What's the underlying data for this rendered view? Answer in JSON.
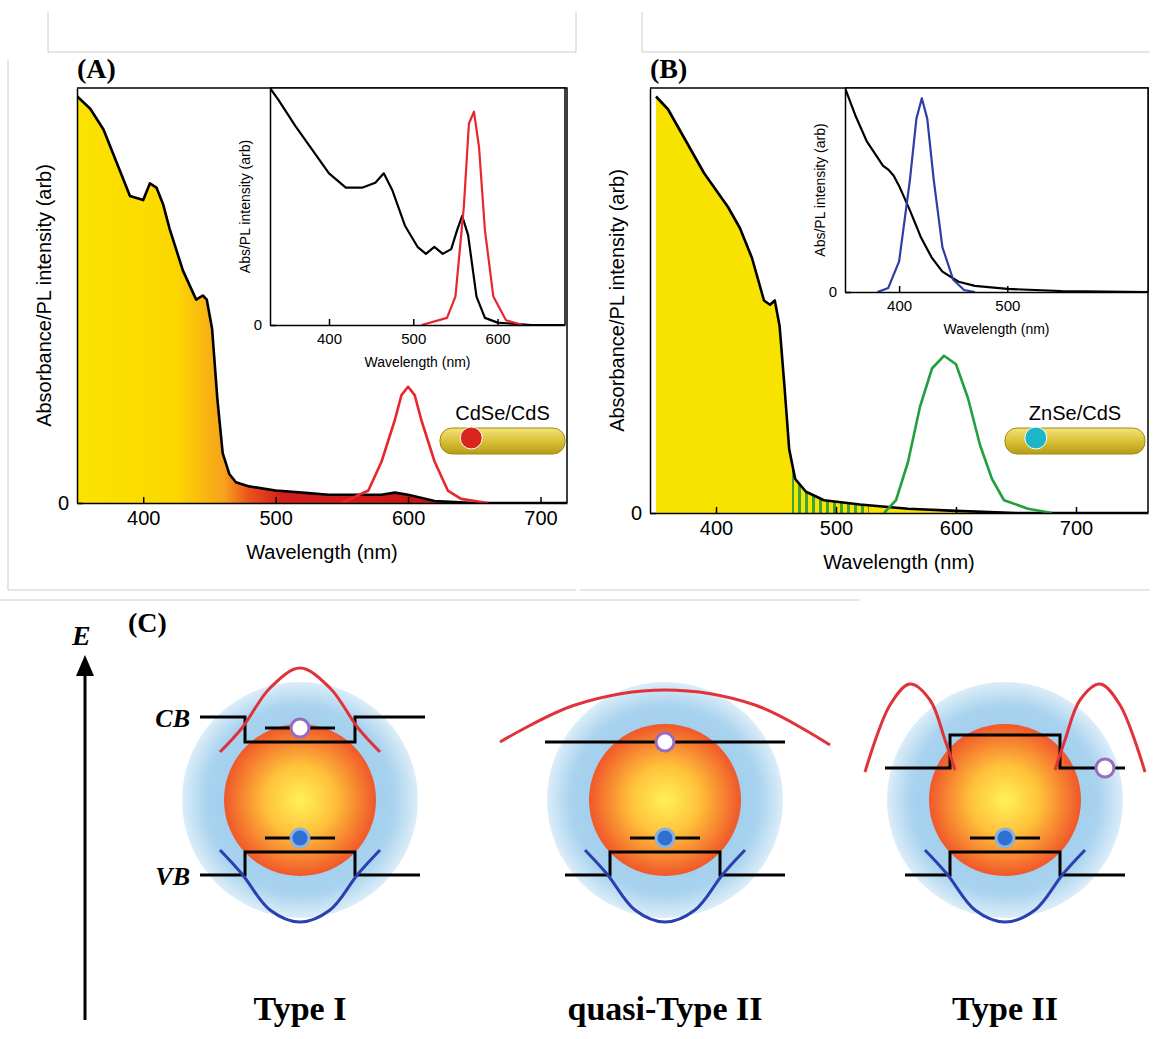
{
  "chart_data": [
    {
      "type": "line",
      "panel_label": "(A)",
      "x_label": "Wavelength (nm)",
      "y_label": "Absorbance/PL intensity (arb)",
      "annotations": [
        "CdSe/CdS"
      ],
      "xlim": [
        350,
        720
      ],
      "xticks": [
        400,
        500,
        600,
        700
      ],
      "ylim": [
        0,
        1
      ],
      "yticks": [
        0
      ],
      "series": [
        {
          "type": "area",
          "color": "#000000",
          "x": [
            350,
            360,
            370,
            380,
            390,
            400,
            405,
            410,
            415,
            420,
            430,
            440,
            445,
            448,
            452,
            456,
            460,
            465,
            470,
            480,
            500,
            520,
            540,
            560,
            580,
            590,
            600,
            620,
            650,
            720
          ],
          "values": [
            0.98,
            0.95,
            0.9,
            0.82,
            0.74,
            0.73,
            0.77,
            0.76,
            0.72,
            0.66,
            0.56,
            0.49,
            0.5,
            0.49,
            0.42,
            0.25,
            0.12,
            0.07,
            0.05,
            0.04,
            0.03,
            0.025,
            0.02,
            0.02,
            0.02,
            0.025,
            0.02,
            0.005,
            0,
            0
          ]
        },
        {
          "type": "line",
          "color": "#e8262d",
          "x": [
            550,
            570,
            580,
            590,
            595,
            600,
            605,
            610,
            620,
            630,
            640,
            660
          ],
          "values": [
            0,
            0.03,
            0.1,
            0.2,
            0.26,
            0.28,
            0.26,
            0.2,
            0.1,
            0.03,
            0.01,
            0
          ]
        }
      ]
    },
    {
      "type": "line",
      "x_label": "Wavelength (nm)",
      "y_label": "Abs/PL intensity (arb)",
      "xlim": [
        330,
        680
      ],
      "xticks": [
        400,
        500,
        600
      ],
      "ylim": [
        0,
        1
      ],
      "yticks": [
        0
      ],
      "series": [
        {
          "type": "line",
          "color": "#000000",
          "x": [
            330,
            340,
            360,
            380,
            400,
            420,
            440,
            455,
            465,
            475,
            490,
            505,
            515,
            525,
            535,
            545,
            552,
            558,
            565,
            575,
            585,
            600,
            640,
            680
          ],
          "values": [
            1.0,
            0.95,
            0.84,
            0.74,
            0.64,
            0.58,
            0.58,
            0.6,
            0.64,
            0.57,
            0.42,
            0.33,
            0.3,
            0.33,
            0.3,
            0.32,
            0.4,
            0.46,
            0.38,
            0.12,
            0.03,
            0.01,
            0,
            0
          ]
        },
        {
          "type": "line",
          "color": "#e8262d",
          "x": [
            510,
            540,
            550,
            560,
            566,
            572,
            578,
            585,
            595,
            610,
            630
          ],
          "values": [
            0,
            0.03,
            0.12,
            0.5,
            0.85,
            0.9,
            0.75,
            0.4,
            0.12,
            0.02,
            0
          ]
        }
      ]
    },
    {
      "type": "line",
      "panel_label": "(B)",
      "x_label": "Wavelength (nm)",
      "y_label": "Absorbance/PL intensity (arb)",
      "annotations": [
        "ZnSe/CdS"
      ],
      "xlim": [
        345,
        760
      ],
      "xticks": [
        400,
        500,
        600,
        700
      ],
      "ylim": [
        0,
        1
      ],
      "yticks": [
        0
      ],
      "series": [
        {
          "type": "area",
          "color": "#000000",
          "x": [
            350,
            360,
            370,
            380,
            390,
            400,
            410,
            420,
            430,
            440,
            445,
            449,
            453,
            457,
            461,
            466,
            475,
            490,
            520,
            560,
            600,
            650,
            760
          ],
          "values": [
            0.98,
            0.95,
            0.9,
            0.85,
            0.8,
            0.76,
            0.72,
            0.67,
            0.6,
            0.5,
            0.49,
            0.5,
            0.44,
            0.3,
            0.15,
            0.08,
            0.05,
            0.03,
            0.02,
            0.01,
            0.005,
            0,
            0
          ]
        },
        {
          "type": "line",
          "color": "#22a040",
          "x": [
            540,
            550,
            560,
            570,
            580,
            590,
            600,
            610,
            620,
            630,
            640,
            660,
            680
          ],
          "values": [
            0,
            0.03,
            0.12,
            0.25,
            0.34,
            0.37,
            0.35,
            0.27,
            0.16,
            0.08,
            0.03,
            0.01,
            0
          ]
        }
      ]
    },
    {
      "type": "line",
      "x_label": "Wavelength (nm)",
      "y_label": "Abs/PL intensity (arb)",
      "xlim": [
        350,
        630
      ],
      "xticks": [
        400,
        500
      ],
      "ylim": [
        0,
        1
      ],
      "yticks": [
        0
      ],
      "series": [
        {
          "type": "line",
          "color": "#000000",
          "x": [
            350,
            360,
            370,
            380,
            385,
            390,
            395,
            400,
            410,
            420,
            430,
            440,
            455,
            470,
            500,
            550,
            630
          ],
          "values": [
            1.0,
            0.86,
            0.74,
            0.66,
            0.62,
            0.6,
            0.57,
            0.52,
            0.4,
            0.27,
            0.17,
            0.1,
            0.05,
            0.03,
            0.015,
            0.005,
            0
          ]
        },
        {
          "type": "line",
          "color": "#2c3ea8",
          "x": [
            380,
            390,
            400,
            410,
            416,
            421,
            426,
            432,
            440,
            450,
            460,
            470
          ],
          "values": [
            0,
            0.02,
            0.15,
            0.55,
            0.85,
            0.95,
            0.85,
            0.55,
            0.22,
            0.06,
            0.01,
            0
          ]
        }
      ]
    }
  ],
  "diagram": {
    "panel_label": "(C)",
    "axis_label": "E",
    "band_labels": [
      "CB",
      "VB"
    ],
    "panels": [
      {
        "title": "Type I"
      },
      {
        "title": "quasi-Type II"
      },
      {
        "title": "Type II"
      }
    ]
  }
}
